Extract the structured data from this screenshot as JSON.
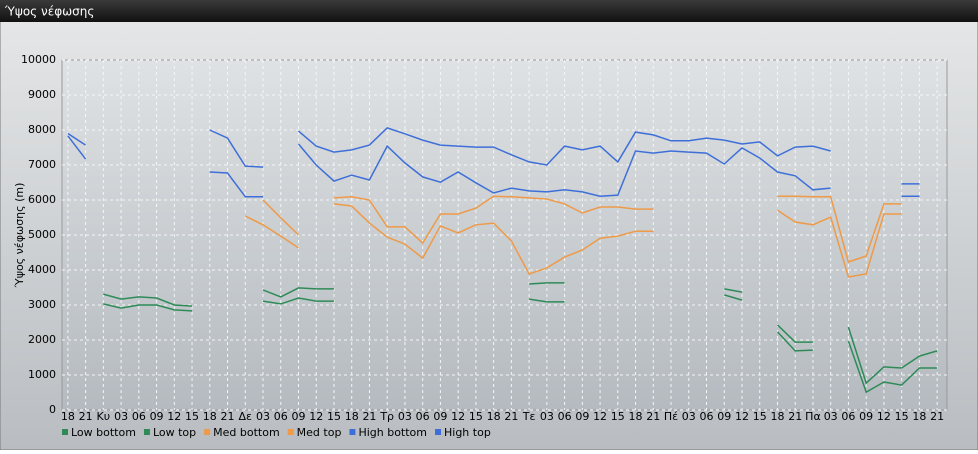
{
  "window_title": "Ύψος νέφωσης",
  "chart_data": {
    "type": "line",
    "ylabel": "Ύψος νέφωσης (m)",
    "categories": [
      "18",
      "21",
      "Κυ",
      "03",
      "06",
      "09",
      "12",
      "15",
      "18",
      "21",
      "Δε",
      "03",
      "06",
      "09",
      "12",
      "15",
      "18",
      "21",
      "Τρ",
      "03",
      "06",
      "09",
      "12",
      "15",
      "18",
      "21",
      "Τε",
      "03",
      "06",
      "09",
      "12",
      "15",
      "18",
      "21",
      "Πέ",
      "03",
      "06",
      "09",
      "12",
      "15",
      "18",
      "21",
      "Πα",
      "03",
      "06",
      "09",
      "12",
      "15",
      "18",
      "21"
    ],
    "ylim": [
      0,
      10000
    ],
    "yticks": [
      0,
      1000,
      2000,
      3000,
      4000,
      5000,
      6000,
      7000,
      8000,
      9000,
      10000
    ],
    "grid": true,
    "legend": "bottom",
    "series": [
      {
        "name": "Low bottom",
        "color": "#2e8b57",
        "values": [
          null,
          null,
          3030,
          2910,
          3000,
          3000,
          2860,
          2830,
          null,
          null,
          null,
          3110,
          3030,
          3200,
          3110,
          3110,
          null,
          null,
          null,
          null,
          null,
          null,
          null,
          null,
          null,
          null,
          3170,
          3090,
          3090,
          null,
          null,
          null,
          null,
          null,
          null,
          null,
          null,
          3290,
          3140,
          null,
          2230,
          1690,
          1710,
          null,
          1970,
          510,
          800,
          710,
          1200,
          1200
        ]
      },
      {
        "name": "Low top",
        "color": "#2e8b57",
        "values": [
          null,
          null,
          3310,
          3170,
          3230,
          3200,
          3000,
          2970,
          null,
          null,
          null,
          3430,
          3230,
          3490,
          3460,
          3460,
          null,
          null,
          null,
          null,
          null,
          null,
          null,
          null,
          null,
          null,
          3600,
          3630,
          3630,
          null,
          null,
          null,
          null,
          null,
          null,
          null,
          null,
          3460,
          3370,
          null,
          2430,
          1940,
          1940,
          null,
          2370,
          770,
          1230,
          1200,
          1540,
          1690
        ]
      },
      {
        "name": "Med bottom",
        "color": "#ee9a48",
        "values": [
          null,
          null,
          null,
          null,
          null,
          null,
          null,
          null,
          null,
          null,
          5540,
          5290,
          4970,
          4630,
          null,
          5890,
          5830,
          5340,
          4940,
          4740,
          4340,
          5260,
          5060,
          5290,
          5340,
          4830,
          3890,
          4060,
          4370,
          4570,
          4910,
          4970,
          5110,
          5110,
          null,
          null,
          null,
          null,
          null,
          null,
          5710,
          5370,
          5290,
          5510,
          3800,
          3890,
          5600,
          5600,
          null,
          null
        ]
      },
      {
        "name": "Med top",
        "color": "#ee9a48",
        "values": [
          null,
          null,
          null,
          null,
          null,
          null,
          null,
          null,
          null,
          null,
          null,
          6000,
          5490,
          5000,
          null,
          6060,
          6090,
          6000,
          5230,
          5230,
          4770,
          5600,
          5600,
          5770,
          6110,
          6090,
          6060,
          6030,
          5890,
          5630,
          5800,
          5800,
          5740,
          5740,
          null,
          null,
          null,
          null,
          null,
          null,
          6110,
          6110,
          6090,
          6090,
          4230,
          4400,
          5890,
          5890,
          null,
          null
        ]
      },
      {
        "name": "High bottom",
        "color": "#3e6fd8",
        "values": [
          7830,
          7170,
          null,
          null,
          null,
          null,
          null,
          null,
          6800,
          6770,
          6090,
          6090,
          null,
          7600,
          7000,
          6540,
          6710,
          6570,
          7540,
          7060,
          6660,
          6510,
          6800,
          6490,
          6200,
          6340,
          6260,
          6230,
          6290,
          6230,
          6110,
          6140,
          7400,
          7340,
          7400,
          7370,
          7340,
          7030,
          7490,
          7200,
          6800,
          6690,
          6290,
          6340,
          null,
          null,
          null,
          6110,
          6110,
          null
        ]
      },
      {
        "name": "High top",
        "color": "#3e6fd8",
        "values": [
          7900,
          7570,
          null,
          null,
          null,
          null,
          null,
          null,
          8000,
          7770,
          6970,
          6940,
          null,
          7970,
          7540,
          7370,
          7430,
          7570,
          8060,
          7890,
          7710,
          7570,
          7540,
          7510,
          7510,
          7290,
          7090,
          7000,
          7540,
          7430,
          7540,
          7090,
          7940,
          7860,
          7690,
          7690,
          7770,
          7710,
          7600,
          7660,
          7260,
          7510,
          7540,
          7400,
          null,
          null,
          null,
          6460,
          6460,
          null
        ]
      }
    ]
  }
}
